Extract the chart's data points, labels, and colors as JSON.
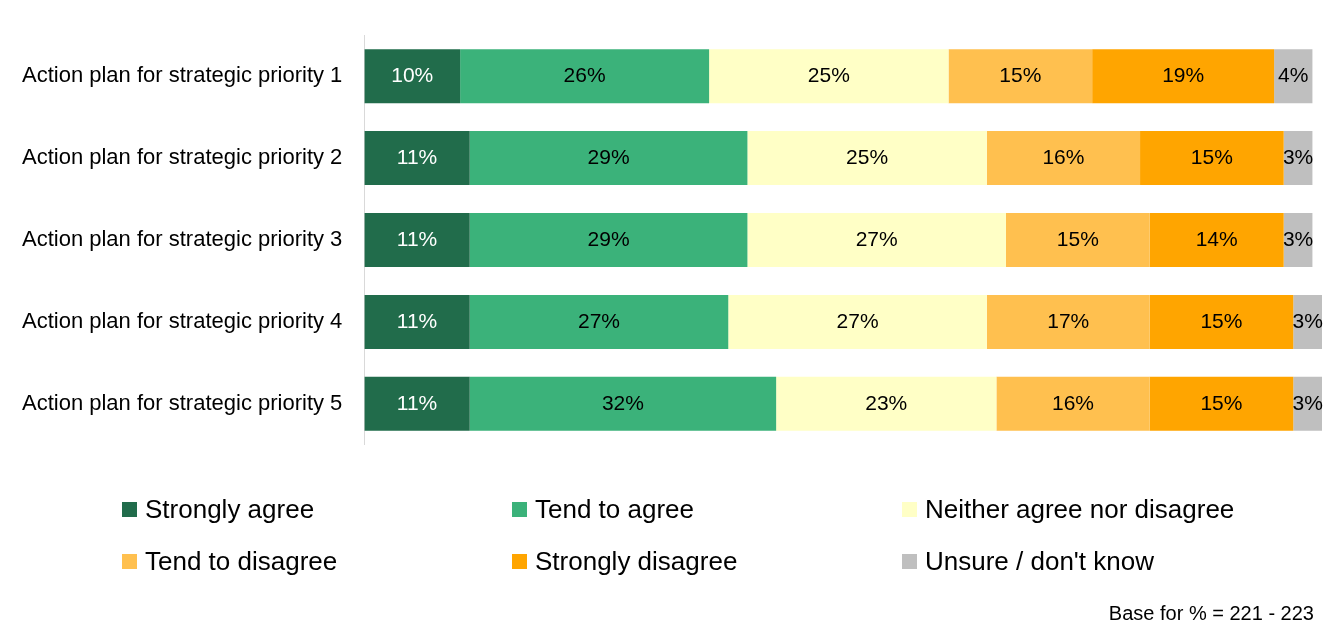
{
  "chart_data": {
    "type": "bar",
    "orientation": "horizontal",
    "stacked": true,
    "legend": "bottom",
    "categories": [
      "Action plan for strategic priority 1",
      "Action plan for strategic priority 2",
      "Action plan for strategic priority 3",
      "Action plan for strategic priority 4",
      "Action plan for strategic priority 5"
    ],
    "series": [
      {
        "name": "Strongly agree",
        "color": "#216c4b",
        "values": [
          10,
          11,
          11,
          11,
          11
        ],
        "value_labels": [
          "10%",
          "11%",
          "11%",
          "11%",
          "11%"
        ]
      },
      {
        "name": "Tend to agree",
        "color": "#3bb27a",
        "values": [
          26,
          29,
          29,
          27,
          32
        ],
        "value_labels": [
          "26%",
          "29%",
          "29%",
          "27%",
          "32%"
        ]
      },
      {
        "name": "Neither agree nor disagree",
        "color": "#ffffc6",
        "values": [
          25,
          25,
          27,
          27,
          23
        ],
        "value_labels": [
          "25%",
          "25%",
          "27%",
          "27%",
          "23%"
        ]
      },
      {
        "name": "Tend to disagree",
        "color": "#ffc04f",
        "values": [
          15,
          16,
          15,
          17,
          16
        ],
        "value_labels": [
          "15%",
          "16%",
          "15%",
          "17%",
          "16%"
        ]
      },
      {
        "name": "Strongly disagree",
        "color": "#ffa500",
        "values": [
          19,
          15,
          14,
          15,
          15
        ],
        "value_labels": [
          "19%",
          "15%",
          "14%",
          "15%",
          "15%"
        ]
      },
      {
        "name": "Unsure / don't know",
        "color": "#bfbfbf",
        "values": [
          4,
          3,
          3,
          3,
          3
        ],
        "value_labels": [
          "4%",
          "3%",
          "3%",
          "3%",
          "3%"
        ]
      }
    ],
    "annotations": [
      "Base for % = 221 - 223"
    ]
  }
}
